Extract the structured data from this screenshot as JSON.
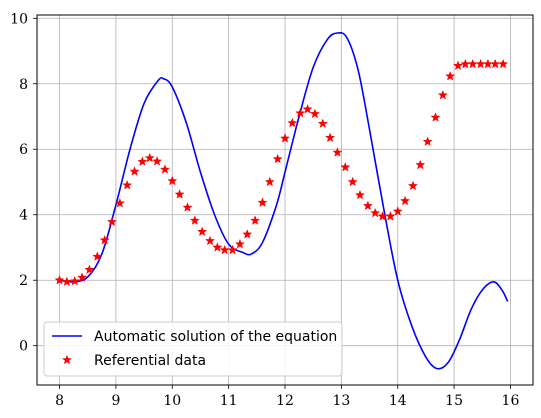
{
  "chart_data": {
    "type": "line",
    "title": "",
    "xlabel": "",
    "ylabel": "",
    "xlim": [
      7.6,
      16.4
    ],
    "ylim": [
      -1.2,
      10.1
    ],
    "xticks": [
      8,
      9,
      10,
      11,
      12,
      13,
      14,
      15,
      16
    ],
    "yticks": [
      0,
      2,
      4,
      6,
      8,
      10
    ],
    "grid": true,
    "legend_position": "lower-left",
    "series": [
      {
        "name": "Automatic solution of the equation",
        "style": "line",
        "color": "#0000ff",
        "x": [
          8.0,
          8.25,
          8.5,
          8.75,
          9.0,
          9.25,
          9.5,
          9.75,
          9.85,
          10.0,
          10.25,
          10.5,
          10.75,
          11.0,
          11.25,
          11.4,
          11.6,
          11.85,
          12.0,
          12.25,
          12.5,
          12.75,
          12.93,
          13.1,
          13.3,
          13.5,
          13.75,
          14.0,
          14.25,
          14.5,
          14.7,
          14.9,
          15.1,
          15.3,
          15.5,
          15.7,
          15.85,
          15.95
        ],
        "y": [
          2.0,
          1.95,
          2.1,
          2.8,
          4.3,
          6.0,
          7.4,
          8.1,
          8.15,
          7.9,
          6.8,
          5.3,
          4.0,
          3.1,
          2.85,
          2.8,
          3.15,
          4.3,
          5.3,
          7.0,
          8.5,
          9.35,
          9.55,
          9.4,
          8.4,
          6.6,
          4.2,
          2.0,
          0.6,
          -0.35,
          -0.7,
          -0.5,
          0.2,
          1.1,
          1.7,
          1.95,
          1.7,
          1.35
        ]
      },
      {
        "name": "Referential data",
        "style": "markers",
        "marker": "star",
        "color": "#ff0000",
        "x": [
          8.0,
          8.13,
          8.27,
          8.4,
          8.53,
          8.67,
          8.8,
          8.93,
          9.07,
          9.2,
          9.33,
          9.47,
          9.6,
          9.73,
          9.87,
          10.0,
          10.13,
          10.27,
          10.4,
          10.53,
          10.67,
          10.8,
          10.93,
          11.07,
          11.2,
          11.33,
          11.47,
          11.6,
          11.73,
          11.87,
          12.0,
          12.13,
          12.27,
          12.4,
          12.53,
          12.67,
          12.8,
          12.93,
          13.07,
          13.2,
          13.33,
          13.47,
          13.6,
          13.73,
          13.87,
          14.0,
          14.13,
          14.27,
          14.4,
          14.53,
          14.67,
          14.8,
          14.93,
          15.07,
          15.2,
          15.33,
          15.47,
          15.6,
          15.73,
          15.87
        ],
        "y": [
          2.0,
          1.95,
          1.97,
          2.08,
          2.32,
          2.72,
          3.22,
          3.78,
          4.35,
          4.9,
          5.32,
          5.62,
          5.73,
          5.63,
          5.38,
          5.03,
          4.62,
          4.22,
          3.82,
          3.48,
          3.2,
          3.0,
          2.92,
          2.92,
          3.1,
          3.4,
          3.82,
          4.37,
          5.0,
          5.7,
          6.33,
          6.8,
          7.1,
          7.22,
          7.08,
          6.78,
          6.35,
          5.9,
          5.45,
          5.0,
          4.6,
          4.27,
          4.05,
          3.95,
          3.95,
          4.1,
          4.42,
          4.88,
          5.52,
          6.23,
          6.97,
          7.65,
          8.23,
          8.55,
          8.6,
          8.6,
          8.6,
          8.6,
          8.6,
          8.6
        ]
      }
    ]
  }
}
